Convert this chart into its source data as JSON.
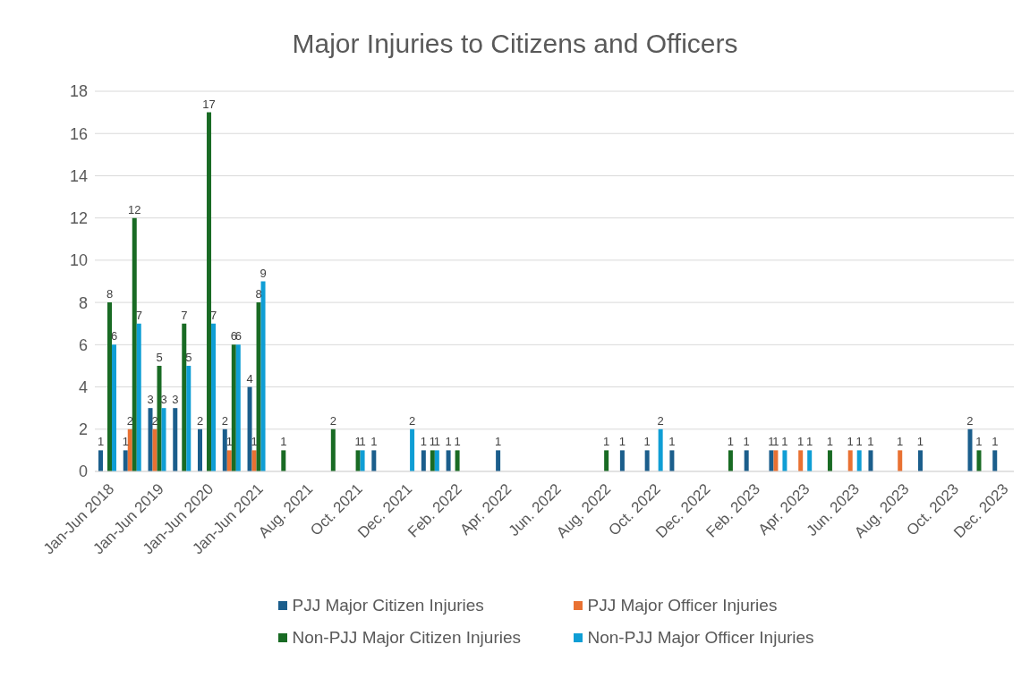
{
  "chart_data": {
    "type": "bar",
    "title": "Major Injuries to Citizens and Officers",
    "categories": [
      "Jan-Jun 2018",
      null,
      "Jan-Jun 2019",
      null,
      "Jan-Jun 2020",
      null,
      "Jan-Jun 2021",
      null,
      "Aug. 2021",
      null,
      "Oct. 2021",
      null,
      "Dec. 2021",
      null,
      "Feb. 2022",
      null,
      "Apr. 2022",
      null,
      "Jun. 2022",
      null,
      "Aug. 2022",
      null,
      "Oct. 2022",
      null,
      "Dec. 2022",
      null,
      "Feb. 2023",
      null,
      "Apr. 2023",
      null,
      "Jun. 2023",
      null,
      "Aug. 2023",
      null,
      "Oct. 2023",
      null,
      "Dec. 2023"
    ],
    "series": [
      {
        "name": "PJJ Major Citizen Injuries",
        "color": "#1b5e8c",
        "values": [
          1,
          1,
          3,
          3,
          2,
          2,
          4,
          null,
          null,
          null,
          null,
          1,
          null,
          1,
          1,
          null,
          1,
          null,
          null,
          null,
          null,
          1,
          1,
          1,
          null,
          null,
          1,
          1,
          null,
          null,
          null,
          1,
          null,
          1,
          null,
          2,
          1
        ]
      },
      {
        "name": "PJJ Major Officer Injuries",
        "color": "#e97132",
        "values": [
          null,
          2,
          2,
          null,
          null,
          1,
          1,
          null,
          null,
          null,
          null,
          null,
          null,
          null,
          null,
          null,
          null,
          null,
          null,
          null,
          null,
          null,
          null,
          null,
          null,
          null,
          null,
          1,
          1,
          null,
          1,
          null,
          1,
          null,
          null,
          null,
          null
        ]
      },
      {
        "name": "Non-PJJ Major Citizen Injuries",
        "color": "#196b24",
        "values": [
          8,
          12,
          5,
          7,
          17,
          6,
          8,
          1,
          null,
          2,
          1,
          null,
          null,
          1,
          1,
          null,
          null,
          null,
          null,
          null,
          1,
          null,
          null,
          null,
          null,
          1,
          null,
          null,
          null,
          1,
          null,
          null,
          null,
          null,
          null,
          1,
          null
        ]
      },
      {
        "name": "Non-PJJ Major Officer Injuries",
        "color": "#0f9ed5",
        "values": [
          6,
          7,
          3,
          5,
          7,
          6,
          9,
          null,
          null,
          null,
          1,
          null,
          2,
          1,
          null,
          null,
          null,
          null,
          null,
          null,
          null,
          null,
          2,
          null,
          null,
          null,
          null,
          1,
          1,
          null,
          1,
          null,
          null,
          null,
          null,
          null,
          null
        ]
      }
    ],
    "ylim": [
      0,
      18
    ],
    "yticks": [
      0,
      2,
      4,
      6,
      8,
      10,
      12,
      14,
      16,
      18
    ],
    "grid": "y",
    "legend": "bottom",
    "data_labels": true
  }
}
